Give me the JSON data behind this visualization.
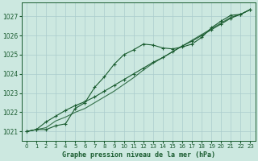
{
  "title": "Graphe pression niveau de la mer (hPa)",
  "bg_color": "#cce8e0",
  "grid_color": "#aacccc",
  "line_color": "#1a5c30",
  "xlim": [
    -0.5,
    23.5
  ],
  "ylim": [
    1020.5,
    1027.7
  ],
  "yticks": [
    1021,
    1022,
    1023,
    1024,
    1025,
    1026,
    1027
  ],
  "xticks": [
    0,
    1,
    2,
    3,
    4,
    5,
    6,
    7,
    8,
    9,
    10,
    11,
    12,
    13,
    14,
    15,
    16,
    17,
    18,
    19,
    20,
    21,
    22,
    23
  ],
  "series1": [
    1021.0,
    1021.1,
    1021.1,
    1021.3,
    1021.4,
    1022.2,
    1022.5,
    1023.3,
    1023.85,
    1024.5,
    1025.0,
    1025.25,
    1025.55,
    1025.5,
    1025.35,
    1025.3,
    1025.4,
    1025.55,
    1025.9,
    1026.4,
    1026.75,
    1027.05,
    1027.1,
    1027.35
  ],
  "series2": [
    1021.0,
    1021.1,
    1021.5,
    1021.8,
    1022.1,
    1022.35,
    1022.55,
    1022.8,
    1023.1,
    1023.4,
    1023.7,
    1024.0,
    1024.3,
    1024.6,
    1024.85,
    1025.15,
    1025.45,
    1025.7,
    1026.0,
    1026.3,
    1026.6,
    1026.9,
    1027.1,
    1027.35
  ],
  "series3": [
    1021.0,
    1021.1,
    1021.2,
    1021.55,
    1021.75,
    1022.0,
    1022.2,
    1022.5,
    1022.8,
    1023.1,
    1023.45,
    1023.8,
    1024.2,
    1024.55,
    1024.85,
    1025.15,
    1025.45,
    1025.75,
    1026.05,
    1026.35,
    1026.65,
    1026.95,
    1027.1,
    1027.35
  ]
}
